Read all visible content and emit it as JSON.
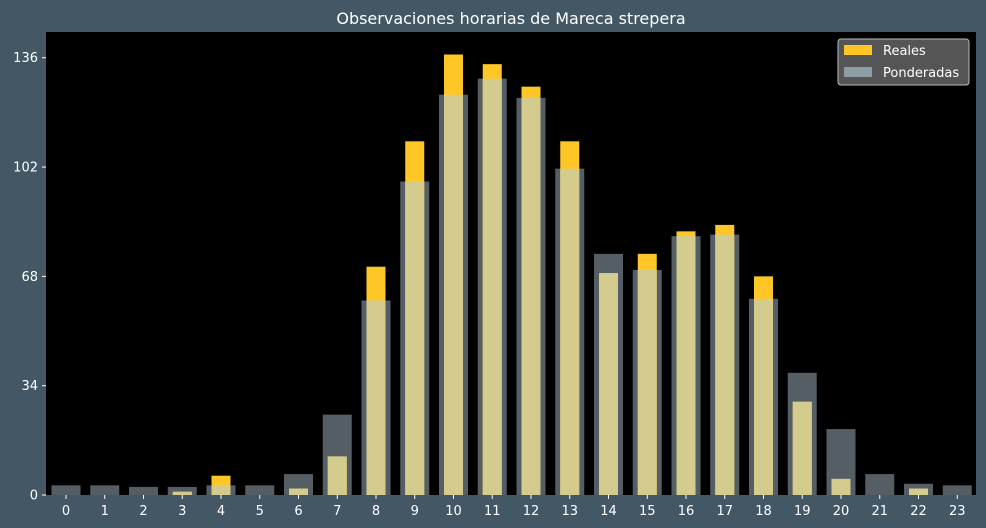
{
  "chart_data": {
    "type": "bar",
    "title": "Observaciones horarias de Mareca strepera",
    "xlabel": "",
    "ylabel": "",
    "categories": [
      "0",
      "1",
      "2",
      "3",
      "4",
      "5",
      "6",
      "7",
      "8",
      "9",
      "10",
      "11",
      "12",
      "13",
      "14",
      "15",
      "16",
      "17",
      "18",
      "19",
      "20",
      "21",
      "22",
      "23"
    ],
    "series": [
      {
        "name": "Reales",
        "color": "#FFC726",
        "values": [
          0,
          0,
          0,
          1,
          6,
          0,
          2,
          12,
          71,
          110,
          137,
          134,
          127,
          110,
          69,
          75,
          82,
          84,
          68,
          29,
          5,
          0,
          2,
          0
        ]
      },
      {
        "name": "Ponderadas",
        "color": "#8C9DA6",
        "values": [
          3,
          3,
          2.5,
          2.5,
          3,
          3,
          6.5,
          25,
          60.5,
          97.5,
          124.5,
          129.5,
          123.5,
          101.5,
          75,
          70,
          80.5,
          81,
          61,
          38,
          20.5,
          6.5,
          3.5,
          3
        ]
      }
    ],
    "overlap_color": "#D4CC8E",
    "ylim": [
      0,
      144
    ],
    "yticks": [
      0,
      34,
      68,
      102,
      136
    ],
    "grid": false,
    "legend_position": "top-right",
    "colors": {
      "background": "#435864",
      "plot_background": "#000000",
      "text": "#FFFFFF",
      "legend_background": "#555555",
      "legend_border": "#BBBBBB"
    }
  }
}
